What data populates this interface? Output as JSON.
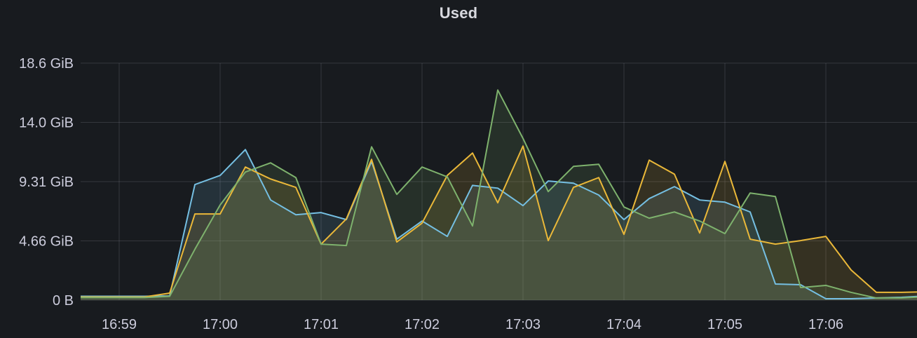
{
  "panel": {
    "title": "Used"
  },
  "colors": {
    "background": "#181b1f",
    "text": "#ccccdc",
    "title_text": "#d8d9df",
    "grid": "rgba(204,204,220,0.16)",
    "series_blue": "#75BFE2",
    "series_yellow": "#EAB839",
    "series_green": "#7EB26D"
  },
  "chart_data": {
    "type": "line",
    "title": "Used",
    "xlabel": "",
    "ylabel": "",
    "legend": "none",
    "grid": true,
    "y_unit": "bytes (IEC)",
    "ylim_gib": [
      0,
      18.63
    ],
    "x_range": [
      "16:58:30",
      "17:07:00"
    ],
    "point_interval_seconds": 15,
    "fill_opacity": 0.14,
    "line_width": 2,
    "x_ticks": [
      {
        "label": "16:59",
        "time": "16:59:00"
      },
      {
        "label": "17:00",
        "time": "17:00:00"
      },
      {
        "label": "17:01",
        "time": "17:01:00"
      },
      {
        "label": "17:02",
        "time": "17:02:00"
      },
      {
        "label": "17:03",
        "time": "17:03:00"
      },
      {
        "label": "17:04",
        "time": "17:04:00"
      },
      {
        "label": "17:05",
        "time": "17:05:00"
      },
      {
        "label": "17:06",
        "time": "17:06:00"
      }
    ],
    "y_ticks": [
      {
        "label": "0 B",
        "gib": 0
      },
      {
        "label": "4.66 GiB",
        "gib": 4.6566
      },
      {
        "label": "9.31 GiB",
        "gib": 9.3132
      },
      {
        "label": "14.0 GiB",
        "gib": 13.9698
      },
      {
        "label": "18.6 GiB",
        "gib": 18.6264
      }
    ],
    "x": [
      "16:58:30",
      "16:58:45",
      "16:59:00",
      "16:59:15",
      "16:59:30",
      "16:59:45",
      "17:00:00",
      "17:00:15",
      "17:00:30",
      "17:00:45",
      "17:01:00",
      "17:01:15",
      "17:01:30",
      "17:01:45",
      "17:02:00",
      "17:02:15",
      "17:02:30",
      "17:02:45",
      "17:03:00",
      "17:03:15",
      "17:03:30",
      "17:03:45",
      "17:04:00",
      "17:04:15",
      "17:04:30",
      "17:04:45",
      "17:05:00",
      "17:05:15",
      "17:05:30",
      "17:05:45",
      "17:06:00",
      "17:06:15",
      "17:06:30",
      "17:06:45",
      "17:07:00"
    ],
    "series": [
      {
        "name": "series-blue",
        "color": "#75BFE2",
        "values_gib": [
          0.3,
          0.3,
          0.3,
          0.3,
          0.33,
          9.08,
          9.8,
          11.83,
          7.87,
          6.71,
          6.88,
          6.33,
          10.9,
          4.79,
          6.22,
          5.01,
          9.02,
          8.8,
          7.43,
          9.36,
          9.19,
          8.26,
          6.33,
          7.98,
          8.92,
          7.87,
          7.7,
          6.93,
          1.27,
          1.21,
          0.11,
          0.11,
          0.17,
          0.22,
          0.33
        ]
      },
      {
        "name": "series-yellow",
        "color": "#EAB839",
        "values_gib": [
          0.25,
          0.25,
          0.25,
          0.25,
          0.55,
          6.77,
          6.77,
          10.46,
          9.52,
          8.86,
          4.4,
          6.38,
          11.06,
          4.57,
          6.05,
          9.8,
          11.56,
          7.65,
          12.11,
          4.68,
          8.86,
          9.63,
          5.17,
          11.0,
          9.9,
          5.28,
          10.9,
          4.79,
          4.4,
          4.68,
          5.01,
          2.37,
          0.61,
          0.61,
          0.66
        ]
      },
      {
        "name": "series-green",
        "color": "#7EB26D",
        "values_gib": [
          0.2,
          0.2,
          0.2,
          0.2,
          0.3,
          4.0,
          7.48,
          10.07,
          10.79,
          9.63,
          4.4,
          4.29,
          12.05,
          8.31,
          10.46,
          9.69,
          5.83,
          16.51,
          12.71,
          8.53,
          10.51,
          10.68,
          7.32,
          6.44,
          6.93,
          6.22,
          5.23,
          8.42,
          8.14,
          0.99,
          1.16,
          0.61,
          0.17,
          0.17,
          0.28
        ]
      }
    ]
  }
}
